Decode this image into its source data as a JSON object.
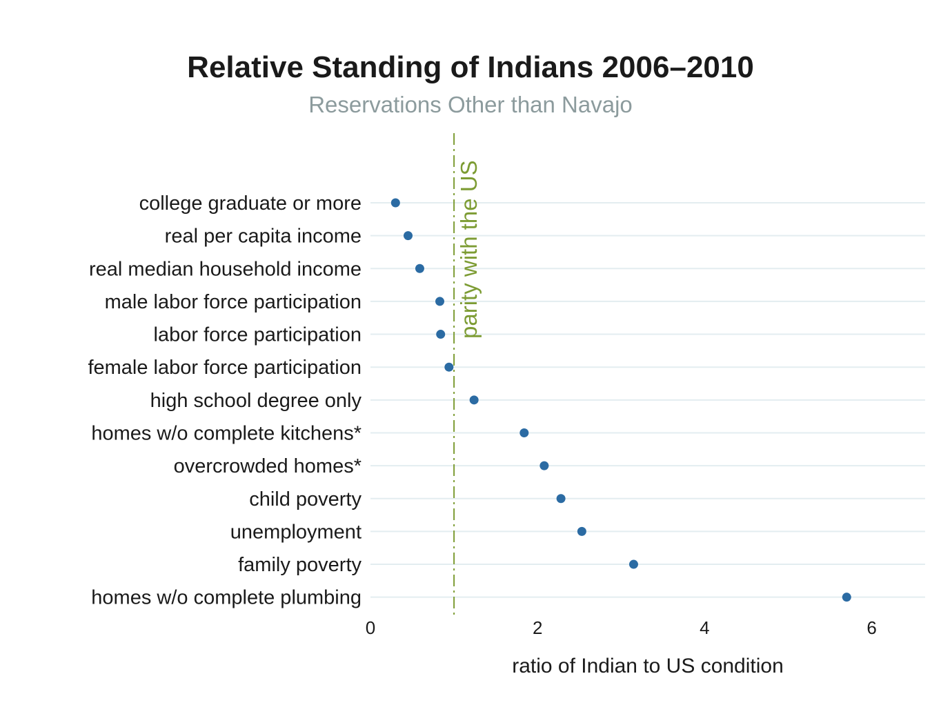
{
  "chart_data": {
    "type": "scatter",
    "variant": "horizontal-dot-plot",
    "title": "Relative Standing of Indians 2006–2010",
    "subtitle": "Reservations Other than Navajo",
    "categories": [
      "college graduate or more",
      "real per capita income",
      "real median household income",
      "male labor force participation",
      "labor force participation",
      "female labor force participation",
      "high school degree only",
      "homes w/o complete kitchens*",
      "overcrowded homes*",
      "child poverty",
      "unemployment",
      "family poverty",
      "homes w/o complete plumbing"
    ],
    "values": [
      0.3,
      0.45,
      0.59,
      0.83,
      0.84,
      0.94,
      1.24,
      1.84,
      2.08,
      2.28,
      2.53,
      3.15,
      5.7
    ],
    "xlabel": "ratio of Indian to US condition",
    "xticks": [
      0,
      2,
      4,
      6
    ],
    "xtick_labels": [
      "0",
      "2",
      "4",
      "6"
    ],
    "xlim": [
      0,
      6.6
    ],
    "grid": "light horizontal line per category row",
    "legend": "none",
    "reference_line": {
      "x": 1,
      "label": "parity with the US",
      "orientation": "vertical",
      "style": "dash-dot"
    },
    "colors": {
      "dot": "#2b6ba3",
      "reference": "#7d9c34",
      "subtitle": "#8c9b9d",
      "gridline": "#e3edf0",
      "text": "#1a1a1a"
    }
  }
}
